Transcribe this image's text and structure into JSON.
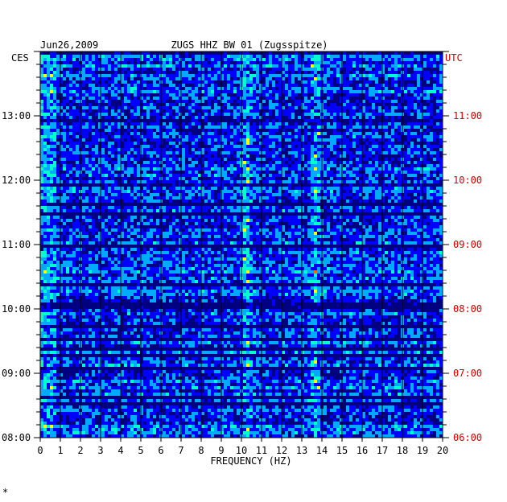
{
  "chart_data": {
    "type": "heatmap",
    "title": "ZUGS HHZ BW 01 (Zugsspitze)",
    "date": "Jun26,2009",
    "left_zone": "CES",
    "right_zone": "UTC",
    "xlabel": "FREQUENCY (HZ)",
    "x_ticks": [
      "0",
      "1",
      "2",
      "3",
      "4",
      "5",
      "6",
      "7",
      "8",
      "9",
      "10",
      "11",
      "12",
      "13",
      "14",
      "15",
      "16",
      "17",
      "18",
      "19",
      "20"
    ],
    "xlim": [
      0,
      20
    ],
    "left_time_labels": [
      "08:00",
      "09:00",
      "10:00",
      "11:00",
      "12:00",
      "13:00"
    ],
    "right_time_labels": [
      "06:00",
      "07:00",
      "08:00",
      "09:00",
      "10:00",
      "11:00"
    ],
    "time_range_local": [
      "08:00",
      "13:50"
    ],
    "colormap": [
      "#000080",
      "#0000ff",
      "#00aaff",
      "#00ffcc",
      "#ffff00",
      "#ff6600",
      "#ff0000"
    ],
    "bright_frequency_bands_hz": [
      10.2,
      13.6
    ],
    "grid": true
  },
  "footer_mark": "*"
}
